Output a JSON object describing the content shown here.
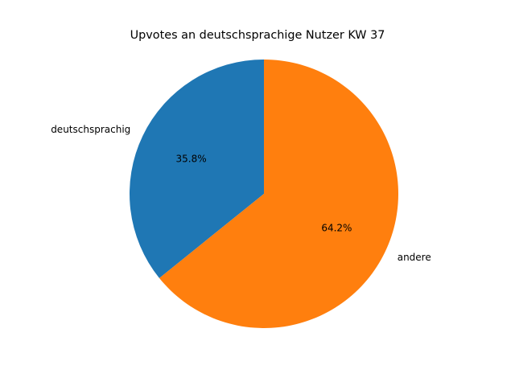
{
  "chart_data": {
    "type": "pie",
    "title": "Upvotes an deutschsprachige Nutzer KW 37",
    "categories": [
      "deutschsprachig",
      "andere"
    ],
    "values": [
      35.8,
      64.2
    ],
    "value_labels": [
      "35.8%",
      "64.2%"
    ],
    "colors": [
      "#1f77b4",
      "#ff7f0e"
    ]
  }
}
